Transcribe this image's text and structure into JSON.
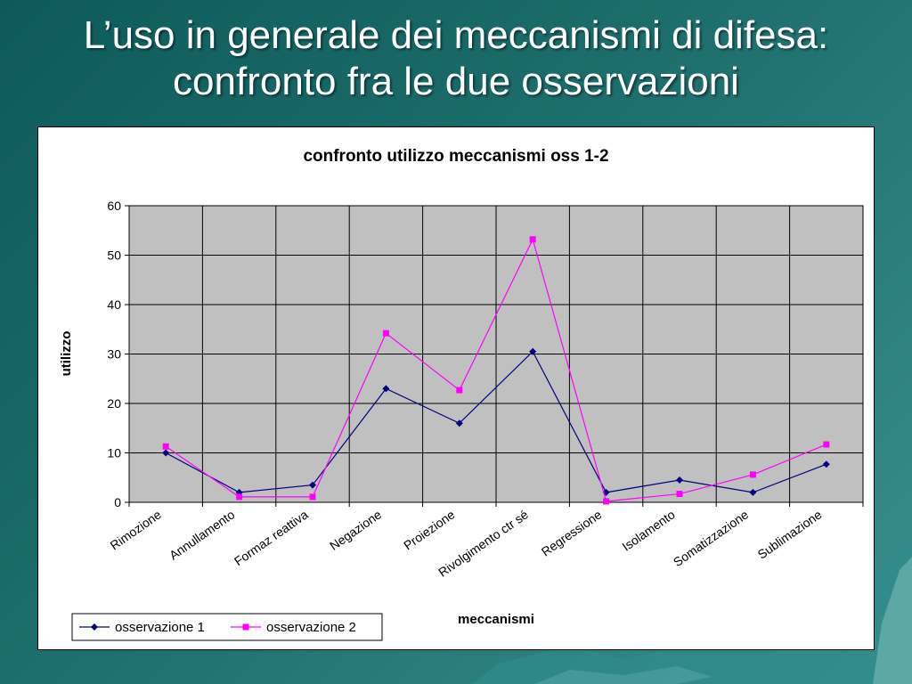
{
  "slide": {
    "title_line1": "L’uso in generale dei meccanismi di difesa:",
    "title_line2": "confronto fra le due osservazioni"
  },
  "colors": {
    "background": "#1d6e6c",
    "plot_area": "#c0c0c0",
    "series1": "#000080",
    "series2": "#ff00ff"
  },
  "chart_data": {
    "type": "line",
    "title": "confronto utilizzo meccanismi oss 1-2",
    "xlabel": "meccanismi",
    "ylabel": "utilizzo",
    "ylim": [
      0,
      60
    ],
    "yticks": [
      0,
      10,
      20,
      30,
      40,
      50,
      60
    ],
    "grid": true,
    "legend_position": "bottom-left",
    "categories": [
      "Rimozione",
      "Annullamento",
      "Formaz reattiva",
      "Negazione",
      "Proiezione",
      "Rivolgimento ctr sé",
      "Regressione",
      "Isolamento",
      "Somatizzazione",
      "Sublimazione"
    ],
    "series": [
      {
        "name": "osservazione 1",
        "color": "#000080",
        "marker": "diamond",
        "values": [
          10,
          2,
          3.5,
          23,
          16,
          30.5,
          2,
          4.5,
          2,
          7.7
        ]
      },
      {
        "name": "osservazione 2",
        "color": "#ff00ff",
        "marker": "square",
        "values": [
          11.3,
          1.1,
          1.1,
          34.2,
          22.7,
          53.2,
          0.2,
          1.7,
          5.6,
          11.7
        ]
      }
    ]
  }
}
